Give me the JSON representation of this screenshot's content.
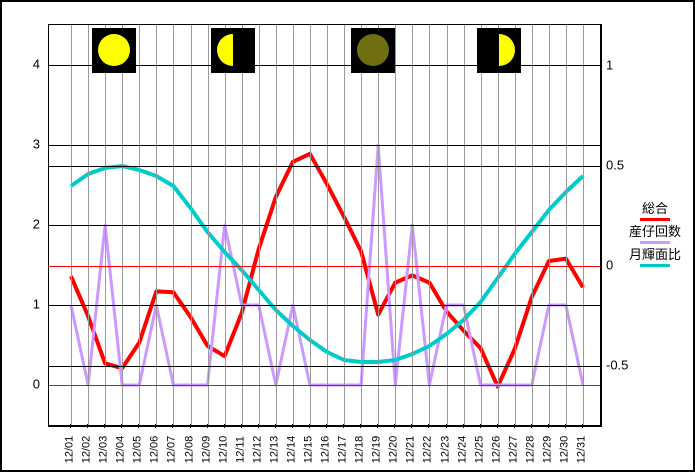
{
  "chart_data": {
    "type": "line",
    "title": "",
    "categories": [
      "12/01",
      "12/02",
      "12/03",
      "12/04",
      "12/05",
      "12/06",
      "12/07",
      "12/08",
      "12/09",
      "12/10",
      "12/11",
      "12/12",
      "12/13",
      "12/14",
      "12/15",
      "12/16",
      "12/17",
      "12/18",
      "12/19",
      "12/20",
      "12/21",
      "12/22",
      "12/23",
      "12/24",
      "12/25",
      "12/26",
      "12/27",
      "12/28",
      "12/29",
      "12/30",
      "12/31"
    ],
    "series": [
      {
        "name": "総合",
        "id": "total-line",
        "color": "#ff0000",
        "axis": "left",
        "width": 4,
        "values": [
          1.36,
          0.86,
          0.27,
          0.21,
          0.53,
          1.17,
          1.16,
          0.85,
          0.49,
          0.36,
          0.9,
          1.7,
          2.35,
          2.79,
          2.89,
          2.51,
          2.1,
          1.67,
          0.88,
          1.28,
          1.37,
          1.28,
          0.92,
          0.68,
          0.46,
          -0.02,
          0.45,
          1.1,
          1.55,
          1.58,
          1.22
        ]
      },
      {
        "name": "産仔回数",
        "id": "births-line",
        "color": "#cc99ff",
        "axis": "left",
        "width": 3,
        "values": [
          1,
          0,
          2,
          0,
          0,
          1,
          0,
          0,
          0,
          2,
          1,
          1,
          0,
          1,
          0,
          0,
          0,
          0,
          3,
          0,
          2,
          0,
          1,
          1,
          0,
          0,
          0,
          0,
          1,
          1,
          0
        ]
      },
      {
        "name": "月輝面比",
        "id": "moon-illumination-line",
        "color": "#00cbcb",
        "axis": "right",
        "width": 4,
        "values": [
          0.4,
          0.46,
          0.49,
          0.5,
          0.48,
          0.45,
          0.4,
          0.29,
          0.17,
          0.07,
          -0.02,
          -0.12,
          -0.22,
          -0.3,
          -0.37,
          -0.43,
          -0.47,
          -0.48,
          -0.48,
          -0.47,
          -0.44,
          -0.4,
          -0.34,
          -0.27,
          -0.18,
          -0.06,
          0.06,
          0.17,
          0.28,
          0.37,
          0.45
        ]
      }
    ],
    "left_axis": {
      "tick_labels": [
        "4",
        "3",
        "2",
        "1",
        "0"
      ],
      "tick_values": [
        4,
        3,
        2,
        1,
        0
      ],
      "zero_line_color": "#ff0000"
    },
    "right_axis": {
      "tick_labels": [
        "1",
        "0.5",
        "0",
        "-0.5"
      ],
      "tick_values": [
        1,
        0.5,
        0,
        -0.5
      ],
      "zero_line_color": "#ff0000"
    },
    "grid": true,
    "legend_position": "right",
    "moon_phases": [
      {
        "name": "full-moon",
        "day": 3.5,
        "lit_color": "#ffff00",
        "shape": "full"
      },
      {
        "name": "last-quarter",
        "day": 10.5,
        "lit_color": "#ffff00",
        "shape": "left-half"
      },
      {
        "name": "new-moon",
        "day": 18.7,
        "lit_color": "#6f6f12",
        "shape": "dark-full"
      },
      {
        "name": "first-quarter",
        "day": 26.1,
        "lit_color": "#ffff00",
        "shape": "right-half"
      }
    ],
    "colors": {
      "gridline_black": "#000000",
      "gridline_gray": "#9a9a9a",
      "zero_line": "#ff0000",
      "moon_bg": "#000000"
    }
  },
  "legend": {
    "entries": [
      "総合",
      "産仔回数",
      "月輝面比"
    ]
  }
}
